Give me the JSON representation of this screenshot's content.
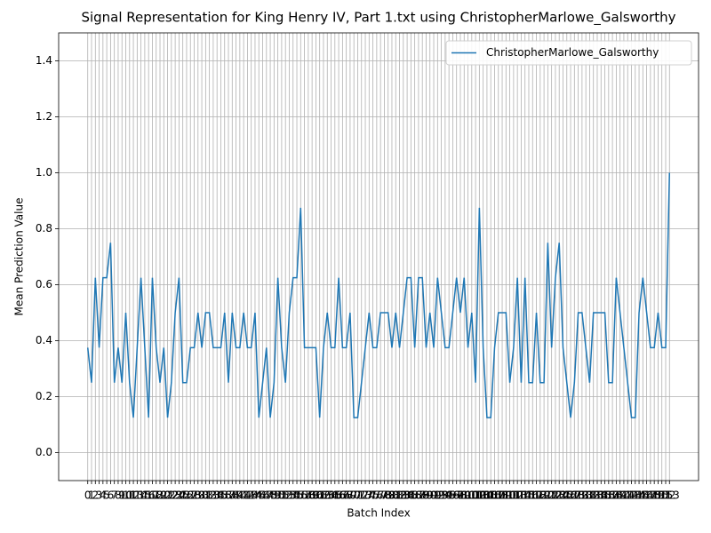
{
  "chart_data": {
    "type": "line",
    "title": "Signal Representation for King Henry IV, Part 1.txt using ChristopherMarlowe_Galsworthy",
    "xlabel": "Batch Index",
    "ylabel": "Mean Prediction Value",
    "x": [
      0,
      1,
      2,
      3,
      4,
      5,
      6,
      7,
      8,
      9,
      10,
      11,
      12,
      13,
      14,
      15,
      16,
      17,
      18,
      19,
      20,
      21,
      22,
      23,
      24,
      25,
      26,
      27,
      28,
      29,
      30,
      31,
      32,
      33,
      34,
      35,
      36,
      37,
      38,
      39,
      40,
      41,
      42,
      43,
      44,
      45,
      46,
      47,
      48,
      49,
      50,
      51,
      52,
      53,
      54,
      55,
      56,
      57,
      58,
      59,
      60,
      61,
      62,
      63,
      64,
      65,
      66,
      67,
      68,
      69,
      70,
      71,
      72,
      73,
      74,
      75,
      76,
      77,
      78,
      79,
      80,
      81,
      82,
      83,
      84,
      85,
      86,
      87,
      88,
      89,
      90,
      91,
      92,
      93,
      94,
      95,
      96,
      97,
      98,
      99,
      100,
      101,
      102,
      103,
      104,
      105,
      106,
      107,
      108,
      109,
      110,
      111,
      112,
      113,
      114,
      115,
      116,
      117,
      118,
      119,
      120,
      121,
      122,
      123,
      124,
      125,
      126,
      127,
      128,
      129,
      130,
      131,
      132,
      133,
      134,
      135,
      136,
      137,
      138,
      139,
      140,
      141,
      142,
      143,
      144,
      145,
      146,
      147,
      148,
      149,
      150,
      151,
      152,
      153
    ],
    "series": [
      {
        "name": "ChristopherMarlowe_Galsworthy",
        "color": "#1f77b4",
        "values": [
          0.375,
          0.25,
          0.625,
          0.375,
          0.625,
          0.625,
          0.75,
          0.25,
          0.375,
          0.25,
          0.5,
          0.25,
          0.125,
          0.375,
          0.625,
          0.375,
          0.125,
          0.625,
          0.375,
          0.25,
          0.375,
          0.125,
          0.25,
          0.5,
          0.625,
          0.25,
          0.25,
          0.375,
          0.375,
          0.5,
          0.375,
          0.5,
          0.5,
          0.375,
          0.375,
          0.375,
          0.5,
          0.25,
          0.5,
          0.375,
          0.375,
          0.5,
          0.375,
          0.375,
          0.5,
          0.125,
          0.25,
          0.375,
          0.125,
          0.25,
          0.625,
          0.375,
          0.25,
          0.5,
          0.625,
          0.625,
          0.875,
          0.375,
          0.375,
          0.375,
          0.375,
          0.125,
          0.375,
          0.5,
          0.375,
          0.375,
          0.625,
          0.375,
          0.375,
          0.5,
          0.125,
          0.125,
          0.25,
          0.375,
          0.5,
          0.375,
          0.375,
          0.5,
          0.5,
          0.5,
          0.375,
          0.5,
          0.375,
          0.5,
          0.625,
          0.625,
          0.375,
          0.625,
          0.625,
          0.375,
          0.5,
          0.375,
          0.625,
          0.5,
          0.375,
          0.375,
          0.5,
          0.625,
          0.5,
          0.625,
          0.375,
          0.5,
          0.25,
          0.875,
          0.375,
          0.125,
          0.125,
          0.375,
          0.5,
          0.5,
          0.5,
          0.25,
          0.375,
          0.625,
          0.25,
          0.625,
          0.25,
          0.25,
          0.5,
          0.25,
          0.25,
          0.75,
          0.375,
          0.625,
          0.75,
          0.375,
          0.25,
          0.125,
          0.25,
          0.5,
          0.5,
          0.375,
          0.25,
          0.5,
          0.5,
          0.5,
          0.5,
          0.25,
          0.25,
          0.625,
          0.5,
          0.375,
          0.25,
          0.125,
          0.125,
          0.5,
          0.625,
          0.5,
          0.375,
          0.375,
          0.5,
          0.375,
          0.375,
          1.0
        ]
      }
    ],
    "xlim": [
      -7.65,
      160.65
    ],
    "xticks": [
      0,
      1,
      2,
      3,
      4,
      5,
      6,
      7,
      8,
      9,
      10,
      11,
      12,
      13,
      14,
      15,
      16,
      17,
      18,
      19,
      20,
      21,
      22,
      23,
      24,
      25,
      26,
      27,
      28,
      29,
      30,
      31,
      32,
      33,
      34,
      35,
      36,
      37,
      38,
      39,
      40,
      41,
      42,
      43,
      44,
      45,
      46,
      47,
      48,
      49,
      50,
      51,
      52,
      53,
      54,
      55,
      56,
      57,
      58,
      59,
      60,
      61,
      62,
      63,
      64,
      65,
      66,
      67,
      68,
      69,
      70,
      71,
      72,
      73,
      74,
      75,
      76,
      77,
      78,
      79,
      80,
      81,
      82,
      83,
      84,
      85,
      86,
      87,
      88,
      89,
      90,
      91,
      92,
      93,
      94,
      95,
      96,
      97,
      98,
      99,
      100,
      101,
      102,
      103,
      104,
      105,
      106,
      107,
      108,
      109,
      110,
      111,
      112,
      113,
      114,
      115,
      116,
      117,
      118,
      119,
      120,
      121,
      122,
      123,
      124,
      125,
      126,
      127,
      128,
      129,
      130,
      131,
      132,
      133,
      134,
      135,
      136,
      137,
      138,
      139,
      140,
      141,
      142,
      143,
      144,
      145,
      146,
      147,
      148,
      149,
      150,
      151,
      152,
      153
    ],
    "ylim": [
      -0.1,
      1.5
    ],
    "yticks": [
      {
        "value": 0,
        "label": "0.0"
      },
      0.2,
      0.4,
      0.6,
      0.8,
      {
        "value": 1,
        "label": "1.0"
      },
      1.2,
      1.4
    ],
    "grid": true,
    "legend": "upper right"
  }
}
